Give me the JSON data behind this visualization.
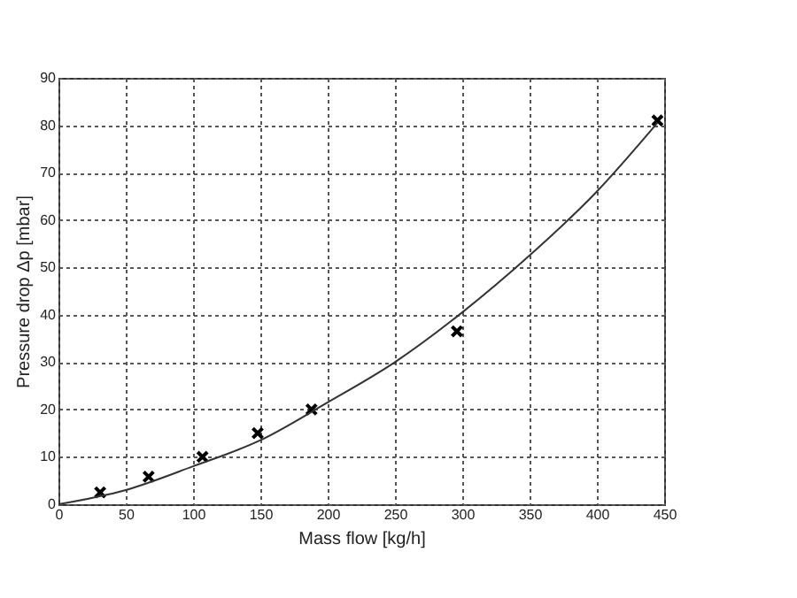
{
  "chart_data": {
    "type": "scatter",
    "xlabel": "Mass flow  [kg/h]",
    "ylabel": "Pressure drop Δp  [mbar]",
    "xlim": [
      0,
      450
    ],
    "xticks": [
      0,
      50,
      100,
      150,
      200,
      250,
      300,
      350,
      400,
      450
    ],
    "ylim": [
      0,
      90
    ],
    "yticks": [
      0,
      10,
      20,
      30,
      40,
      50,
      60,
      70,
      80,
      90
    ],
    "grid": true,
    "series": [
      {
        "marker": "cross",
        "color": "#000000",
        "x": [
          31,
          67,
          107,
          148,
          188,
          296,
          445
        ],
        "values": [
          2.5,
          5.8,
          10,
          15,
          20,
          36.5,
          81
        ]
      },
      {
        "type": "line",
        "marker": "none",
        "line_style": "solid",
        "color": "#333333",
        "x": [
          0,
          50,
          100,
          150,
          200,
          250,
          300,
          350,
          400,
          445
        ],
        "values": [
          0,
          3,
          8,
          13.5,
          21.5,
          30,
          40.5,
          52.5,
          66,
          80.5
        ]
      }
    ]
  }
}
